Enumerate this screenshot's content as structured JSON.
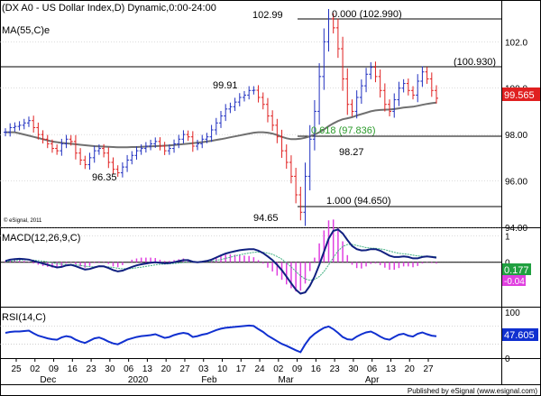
{
  "title": "(DX A0 - US Dollar Index,D) Dynamic,0:00-24:00",
  "ma_label": "MA(55,C)e",
  "copyright": "© eSignal, 2011",
  "footer": "Published by eSignal (www.esignal.com)",
  "colors": {
    "price_bar_up": "#2030c0",
    "price_bar_down": "#e02020",
    "ma_line": "#707070",
    "macd_line": "#102080",
    "signal_line": "#40b080",
    "histogram": "#e040e0",
    "rsi_line": "#1030d0",
    "fib_green": "#2a9a2a",
    "last_price_bg": "#e02020",
    "macd_value_bg": "#20a040",
    "rsi_value_bg": "#1030d0"
  },
  "chart_data": [
    {
      "type": "candlestick",
      "name": "price",
      "ylim": [
        94.0,
        103.8
      ],
      "y_ticks": [
        94.0,
        96.0,
        98.0,
        100.0,
        102.0
      ],
      "y_tick_labels": [
        "94.00",
        "96.00",
        "98.00",
        "100.0",
        "102.0"
      ],
      "x_tick_labels": [
        "25",
        "02",
        "09",
        "16",
        "23",
        "30",
        "06",
        "13",
        "20",
        "27",
        "03",
        "10",
        "17",
        "24",
        "02",
        "09",
        "16",
        "23",
        "30",
        "06",
        "13",
        "20",
        "27"
      ],
      "x_group_labels": [
        "Dec",
        "2020",
        "Feb",
        "Mar",
        "Apr"
      ],
      "last_price": "99.565",
      "closes": [
        98.1,
        98.3,
        98.35,
        98.4,
        98.5,
        98.6,
        98.3,
        98.0,
        97.8,
        97.6,
        97.4,
        97.3,
        97.6,
        97.8,
        97.7,
        97.2,
        96.9,
        96.7,
        97.0,
        97.3,
        97.4,
        97.2,
        96.8,
        96.5,
        96.35,
        96.6,
        96.9,
        97.1,
        97.3,
        97.4,
        97.5,
        97.6,
        97.7,
        97.5,
        97.3,
        97.4,
        97.6,
        97.8,
        98.0,
        97.9,
        97.5,
        97.6,
        97.8,
        97.9,
        98.2,
        98.5,
        98.8,
        99.1,
        99.2,
        99.4,
        99.6,
        99.7,
        99.9,
        99.91,
        99.6,
        99.3,
        98.8,
        98.4,
        97.9,
        97.3,
        96.8,
        96.2,
        95.4,
        94.65,
        96.2,
        97.8,
        99.0,
        100.5,
        102.0,
        102.99,
        102.6,
        101.7,
        100.4,
        99.3,
        99.0,
        99.6,
        100.1,
        100.6,
        100.9,
        100.5,
        99.9,
        99.3,
        99.0,
        99.5,
        100.0,
        100.2,
        99.9,
        99.7,
        100.3,
        100.7,
        100.4,
        99.9,
        99.565
      ],
      "ma": [
        98.1,
        98.1,
        98.1,
        98.05,
        98.0,
        97.95,
        97.9,
        97.85,
        97.8,
        97.75,
        97.7,
        97.67,
        97.64,
        97.62,
        97.6,
        97.58,
        97.56,
        97.54,
        97.52,
        97.5,
        97.49,
        97.48,
        97.47,
        97.46,
        97.45,
        97.45,
        97.45,
        97.46,
        97.46,
        97.47,
        97.48,
        97.49,
        97.5,
        97.51,
        97.52,
        97.53,
        97.55,
        97.57,
        97.59,
        97.61,
        97.63,
        97.65,
        97.67,
        97.7,
        97.73,
        97.77,
        97.8,
        97.84,
        97.88,
        97.92,
        97.96,
        98.0,
        98.04,
        98.08,
        98.1,
        98.1,
        98.08,
        98.04,
        97.98,
        97.9,
        97.84,
        97.8,
        97.8,
        97.82,
        97.86,
        97.92,
        98.0,
        98.1,
        98.22,
        98.36,
        98.48,
        98.58,
        98.66,
        98.7,
        98.75,
        98.82,
        98.88,
        98.94,
        99.0,
        99.04,
        99.06,
        99.07,
        99.08,
        99.1,
        99.13,
        99.16,
        99.18,
        99.2,
        99.24,
        99.28,
        99.32,
        99.35,
        99.38
      ]
    },
    {
      "type": "line",
      "name": "macd",
      "label": "MACD(12,26,9,C)",
      "ylim": [
        -1.7,
        1.3
      ],
      "y_ticks": [
        1,
        0
      ],
      "y_tick_labels": [
        "1",
        "0"
      ],
      "values_text": [
        "0.177",
        "-0.04"
      ],
      "macd": [
        0.05,
        0.1,
        0.12,
        0.13,
        0.12,
        0.1,
        0.05,
        0.0,
        -0.05,
        -0.1,
        -0.15,
        -0.2,
        -0.18,
        -0.12,
        -0.1,
        -0.15,
        -0.22,
        -0.28,
        -0.26,
        -0.2,
        -0.15,
        -0.16,
        -0.22,
        -0.3,
        -0.35,
        -0.32,
        -0.25,
        -0.18,
        -0.12,
        -0.08,
        -0.05,
        -0.02,
        0.0,
        -0.02,
        -0.04,
        -0.03,
        0.0,
        0.04,
        0.08,
        0.08,
        0.02,
        0.0,
        0.02,
        0.05,
        0.1,
        0.18,
        0.26,
        0.33,
        0.38,
        0.42,
        0.46,
        0.48,
        0.5,
        0.5,
        0.44,
        0.35,
        0.22,
        0.08,
        -0.1,
        -0.3,
        -0.55,
        -0.8,
        -1.05,
        -1.2,
        -1.15,
        -0.9,
        -0.55,
        -0.1,
        0.4,
        0.9,
        1.2,
        1.25,
        1.1,
        0.85,
        0.62,
        0.5,
        0.45,
        0.46,
        0.5,
        0.5,
        0.44,
        0.35,
        0.25,
        0.2,
        0.2,
        0.22,
        0.2,
        0.15,
        0.15,
        0.2,
        0.22,
        0.2,
        0.177
      ],
      "signal": [
        0.02,
        0.04,
        0.06,
        0.08,
        0.09,
        0.09,
        0.08,
        0.06,
        0.04,
        0.01,
        -0.02,
        -0.06,
        -0.08,
        -0.09,
        -0.09,
        -0.1,
        -0.12,
        -0.15,
        -0.17,
        -0.18,
        -0.17,
        -0.17,
        -0.18,
        -0.2,
        -0.23,
        -0.25,
        -0.25,
        -0.24,
        -0.21,
        -0.19,
        -0.16,
        -0.13,
        -0.1,
        -0.08,
        -0.07,
        -0.06,
        -0.05,
        -0.03,
        -0.01,
        0.01,
        0.01,
        0.01,
        0.01,
        0.02,
        0.04,
        0.07,
        0.1,
        0.15,
        0.19,
        0.24,
        0.28,
        0.32,
        0.35,
        0.38,
        0.39,
        0.38,
        0.35,
        0.3,
        0.22,
        0.12,
        -0.02,
        -0.18,
        -0.35,
        -0.52,
        -0.64,
        -0.69,
        -0.66,
        -0.55,
        -0.36,
        -0.1,
        0.18,
        0.43,
        0.6,
        0.68,
        0.68,
        0.64,
        0.6,
        0.56,
        0.54,
        0.53,
        0.51,
        0.48,
        0.43,
        0.38,
        0.34,
        0.32,
        0.3,
        0.27,
        0.24,
        0.23,
        0.23,
        0.22,
        0.21
      ]
    },
    {
      "type": "line",
      "name": "rsi",
      "label": "RSI(14,C)",
      "ylim": [
        0,
        110
      ],
      "y_ticks": [
        100,
        0
      ],
      "y_tick_labels": [
        "100",
        "0"
      ],
      "value_text": "47.605",
      "values": [
        55,
        57,
        58,
        58,
        59,
        60,
        54,
        49,
        46,
        43,
        41,
        40,
        45,
        48,
        46,
        40,
        36,
        33,
        38,
        43,
        45,
        41,
        36,
        32,
        30,
        35,
        40,
        43,
        46,
        48,
        49,
        50,
        52,
        48,
        44,
        46,
        50,
        53,
        55,
        53,
        46,
        48,
        51,
        53,
        57,
        61,
        64,
        66,
        67,
        68,
        69,
        70,
        71,
        70,
        63,
        57,
        49,
        43,
        37,
        31,
        27,
        22,
        17,
        13,
        30,
        44,
        53,
        60,
        66,
        69,
        63,
        55,
        46,
        41,
        40,
        47,
        52,
        56,
        58,
        53,
        47,
        42,
        40,
        46,
        51,
        53,
        49,
        47,
        53,
        56,
        52,
        49,
        47.605
      ]
    }
  ],
  "annotations": {
    "high_label": "102.99",
    "fib_0": "0.000 (102.990)",
    "level_100930": "(100.930)",
    "label_9991": "99.91",
    "fib_618": "0.618 (97.836)",
    "label_9827": "98.27",
    "label_9635": "96.35",
    "fib_100": "1.000 (94.650)",
    "low_label": "94.65"
  }
}
